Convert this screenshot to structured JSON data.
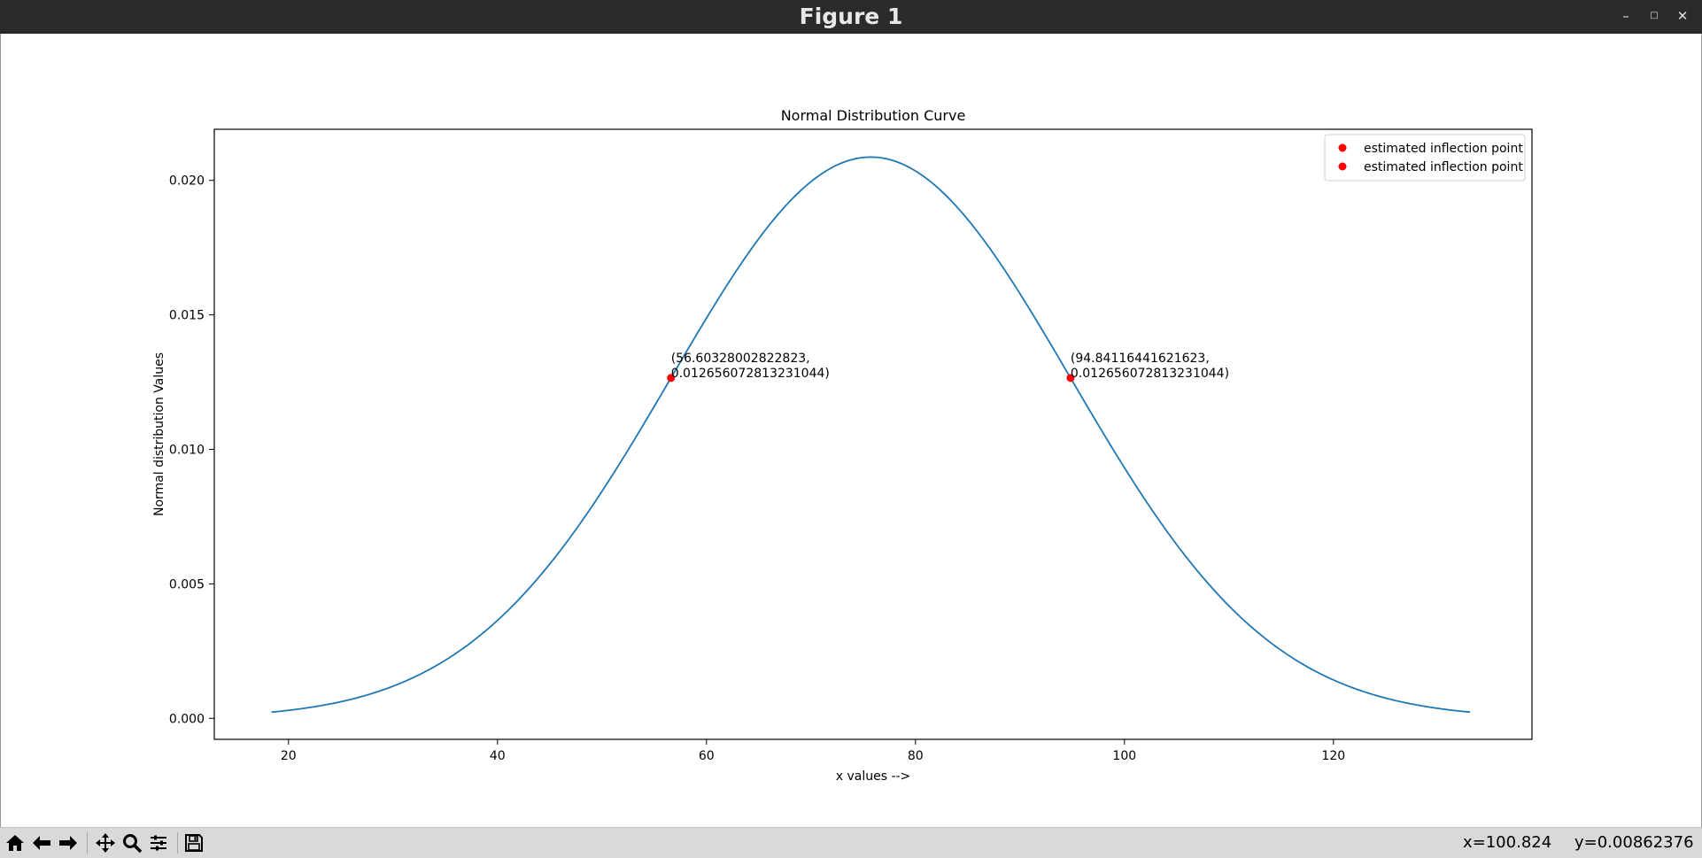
{
  "window": {
    "title": "Figure 1"
  },
  "toolbar": {
    "buttons": [
      {
        "name": "home-icon"
      },
      {
        "name": "back-arrow-icon"
      },
      {
        "name": "forward-arrow-icon"
      },
      {
        "name": "pan-icon"
      },
      {
        "name": "zoom-icon"
      },
      {
        "name": "configure-subplots-icon"
      },
      {
        "name": "save-icon"
      }
    ],
    "x_readout": "x=100.824",
    "y_readout": "y=0.00862376"
  },
  "chart_data": {
    "type": "line",
    "title": "Normal Distribution Curve",
    "xlabel": "x values -->",
    "ylabel": "Normal distribution Values",
    "xlim": [
      12.9,
      139.0
    ],
    "ylim": [
      -0.00078,
      0.0219
    ],
    "xticks": [
      20,
      40,
      60,
      80,
      100,
      120
    ],
    "yticks": [
      0.0,
      0.005,
      0.01,
      0.015,
      0.02
    ],
    "ytick_labels": [
      "0.000",
      "0.005",
      "0.010",
      "0.015",
      "0.020"
    ],
    "series": [
      {
        "kind": "curve",
        "color": "#1f77b4",
        "mu": 75.7222222,
        "sigma": 19.1189422,
        "x_range": [
          18.3654,
          133.079
        ]
      }
    ],
    "points": [
      {
        "x": 56.60328002822823,
        "y": 0.012656072813231044,
        "color": "#ff0000",
        "label_line1": "(56.60328002822823,",
        "label_line2": "0.012656072813231044)"
      },
      {
        "x": 94.84116441621623,
        "y": 0.012656072813231044,
        "color": "#ff0000",
        "label_line1": "(94.84116441621623,",
        "label_line2": "0.012656072813231044)"
      }
    ],
    "legend": {
      "position": "upper right",
      "entries": [
        {
          "label": "estimated inflection point",
          "color": "#ff0000"
        },
        {
          "label": "estimated inflection point",
          "color": "#ff0000"
        }
      ]
    },
    "grid": false
  }
}
